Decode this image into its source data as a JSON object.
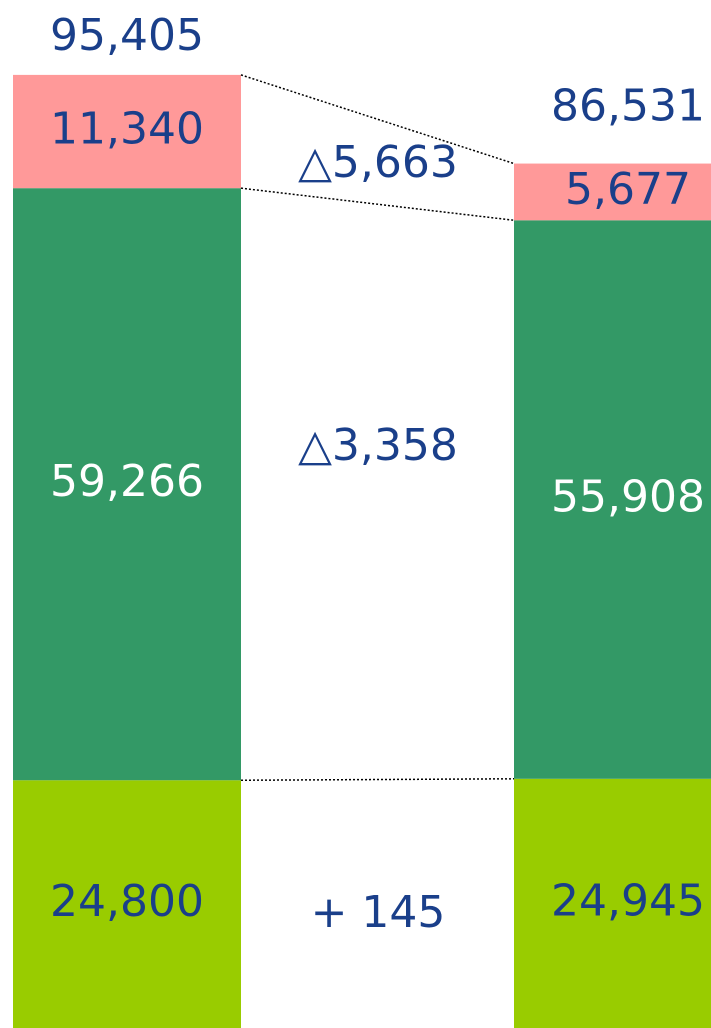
{
  "chart_data": {
    "type": "bar",
    "stacked": true,
    "categories": [
      null,
      null
    ],
    "series": [
      {
        "color": "#99cc00",
        "values": [
          24800,
          24945
        ],
        "value_labels": [
          "24,800",
          "24,945"
        ]
      },
      {
        "color": "#339966",
        "values": [
          59266,
          55908
        ],
        "value_labels": [
          "59,266",
          "55,908"
        ]
      },
      {
        "color": "#ff9999",
        "values": [
          11340,
          5677
        ],
        "value_labels": [
          "11,340",
          "5,677"
        ]
      }
    ],
    "totals": [
      95405,
      86531
    ],
    "total_labels": [
      "95,405",
      "86,531"
    ],
    "annotations": [
      "△5,663",
      "△3,358",
      "+ 145"
    ]
  }
}
